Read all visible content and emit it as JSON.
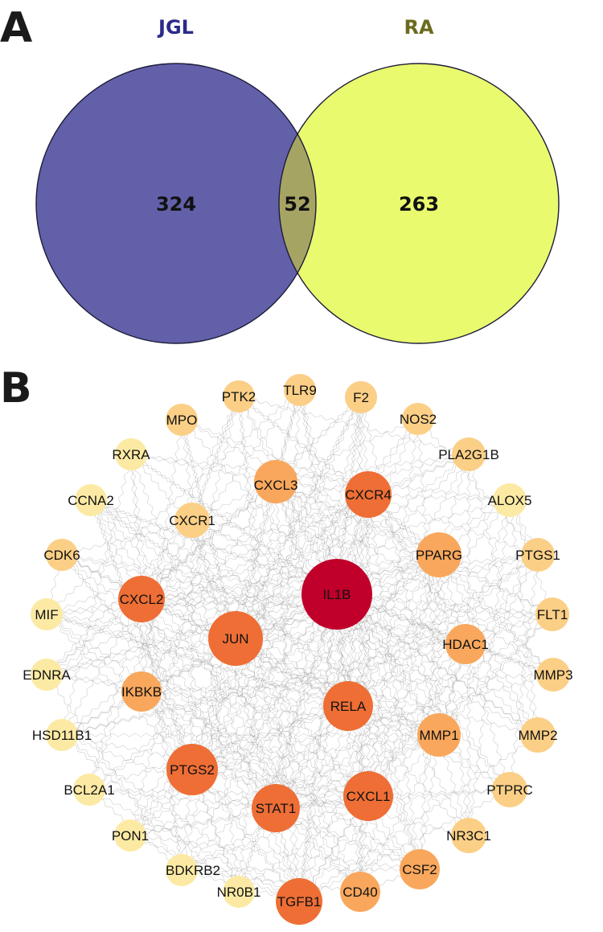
{
  "panel_a": {
    "label": "A",
    "sets": [
      {
        "name": "JGL",
        "only_count": "324",
        "fill": "#6360AA",
        "title_color": "#2B2B8A"
      },
      {
        "name": "RA",
        "only_count": "263",
        "fill": "#EAFA6E",
        "title_color": "#6B6B1E"
      }
    ],
    "intersection_count": "52",
    "intersection_fill": "#A6A463",
    "outline_color": "#1C1C3A"
  },
  "panel_b": {
    "label": "B",
    "colors": {
      "high": "#C0002A",
      "mid_high": "#EE6E35",
      "mid": "#F9A75C",
      "low": "#FBCF86",
      "lowest": "#FCEAA4"
    },
    "edge_color": "#9A9A9A",
    "nodes": [
      {
        "id": "IL1B",
        "level": "high"
      },
      {
        "id": "JUN",
        "level": "mid_high"
      },
      {
        "id": "RELA",
        "level": "mid_high"
      },
      {
        "id": "PTGS2",
        "level": "mid_high"
      },
      {
        "id": "CXCL1",
        "level": "mid_high"
      },
      {
        "id": "STAT1",
        "level": "mid_high"
      },
      {
        "id": "CXCR4",
        "level": "mid_high"
      },
      {
        "id": "CXCL2",
        "level": "mid_high"
      },
      {
        "id": "TGFB1",
        "level": "mid_high"
      },
      {
        "id": "CXCL3",
        "level": "mid"
      },
      {
        "id": "PPARG",
        "level": "mid"
      },
      {
        "id": "MMP1",
        "level": "mid"
      },
      {
        "id": "IKBKB",
        "level": "mid"
      },
      {
        "id": "HDAC1",
        "level": "mid"
      },
      {
        "id": "CD40",
        "level": "mid"
      },
      {
        "id": "CSF2",
        "level": "mid"
      },
      {
        "id": "CXCR1",
        "level": "low"
      },
      {
        "id": "NR3C1",
        "level": "low"
      },
      {
        "id": "PTPRC",
        "level": "low"
      },
      {
        "id": "MMP2",
        "level": "low"
      },
      {
        "id": "MMP3",
        "level": "low"
      },
      {
        "id": "FLT1",
        "level": "low"
      },
      {
        "id": "PTGS1",
        "level": "low"
      },
      {
        "id": "ALOX5",
        "level": "lowest"
      },
      {
        "id": "PLA2G1B",
        "level": "low"
      },
      {
        "id": "NOS2",
        "level": "low"
      },
      {
        "id": "F2",
        "level": "low"
      },
      {
        "id": "TLR9",
        "level": "low"
      },
      {
        "id": "PTK2",
        "level": "low"
      },
      {
        "id": "MPO",
        "level": "low"
      },
      {
        "id": "RXRA",
        "level": "lowest"
      },
      {
        "id": "CCNA2",
        "level": "lowest"
      },
      {
        "id": "CDK6",
        "level": "low"
      },
      {
        "id": "MIF",
        "level": "lowest"
      },
      {
        "id": "EDNRA",
        "level": "lowest"
      },
      {
        "id": "HSD11B1",
        "level": "lowest"
      },
      {
        "id": "BCL2A1",
        "level": "lowest"
      },
      {
        "id": "PON1",
        "level": "lowest"
      },
      {
        "id": "BDKRB2",
        "level": "lowest"
      },
      {
        "id": "NR0B1",
        "level": "lowest"
      }
    ]
  }
}
